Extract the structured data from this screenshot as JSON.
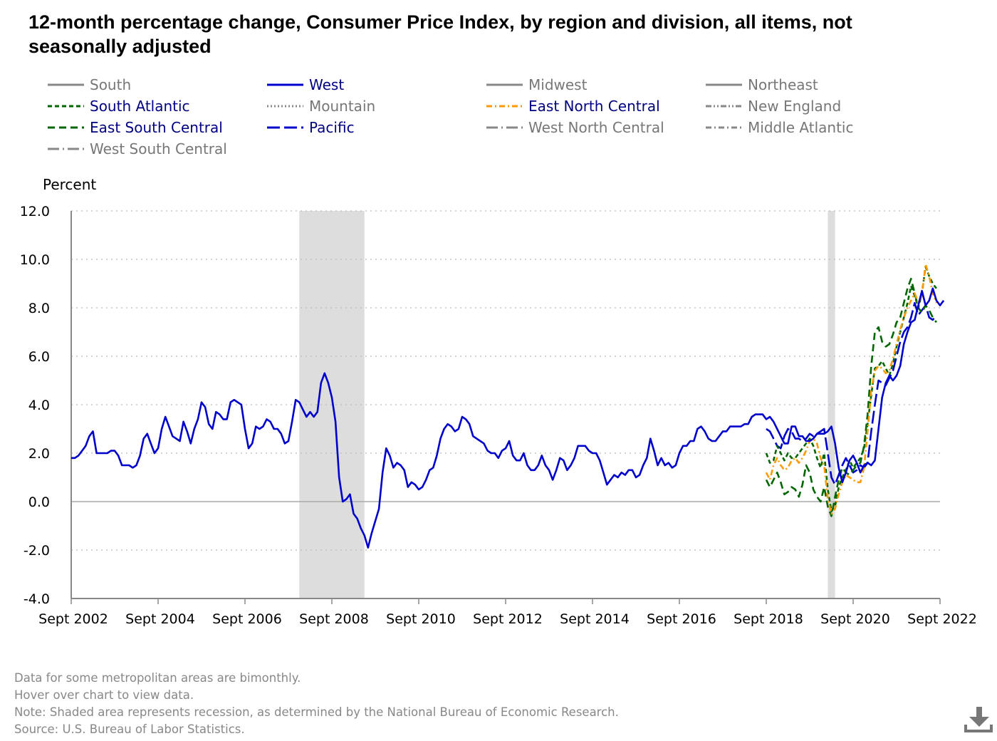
{
  "title": "12-month percentage change, Consumer Price Index, by region and division, all items, not seasonally adjusted",
  "notes": [
    "Data for some metropolitan areas are bimonthly.",
    "Hover over chart to view data.",
    "Note: Shaded area represents recession, as determined by the National Bureau of Economic Research.",
    "Source: U.S. Bureau of Labor Statistics."
  ],
  "icons": {
    "download": "download-icon"
  },
  "colors": {
    "blue": "#0000cc",
    "green": "#006600",
    "orange": "#ff9900",
    "gray": "#999999",
    "recession": "#dddddd"
  },
  "legend": [
    {
      "name": "South",
      "color": "#888888",
      "dash": "solid",
      "label_color": "#777777"
    },
    {
      "name": "West",
      "color": "#0000cc",
      "dash": "solid",
      "label_color": "#000080"
    },
    {
      "name": "Midwest",
      "color": "#888888",
      "dash": "solid",
      "label_color": "#777777"
    },
    {
      "name": "Northeast",
      "color": "#888888",
      "dash": "solid",
      "label_color": "#777777"
    },
    {
      "name": "South Atlantic",
      "color": "#006600",
      "dash": "short-dash",
      "label_color": "#000080"
    },
    {
      "name": "Mountain",
      "color": "#888888",
      "dash": "dot",
      "label_color": "#777777"
    },
    {
      "name": "East North Central",
      "color": "#ff9900",
      "dash": "dash-dot",
      "label_color": "#000080"
    },
    {
      "name": "New England",
      "color": "#888888",
      "dash": "dash-dot-dot",
      "label_color": "#777777"
    },
    {
      "name": "East South Central",
      "color": "#006600",
      "dash": "dash",
      "label_color": "#000080"
    },
    {
      "name": "Pacific",
      "color": "#0000cc",
      "dash": "long-dash",
      "label_color": "#000080"
    },
    {
      "name": "West North Central",
      "color": "#888888",
      "dash": "long-dash-dot",
      "label_color": "#777777"
    },
    {
      "name": "Middle Atlantic",
      "color": "#888888",
      "dash": "dash-dot",
      "label_color": "#777777"
    },
    {
      "name": "West South Central",
      "color": "#888888",
      "dash": "long-dash-dot",
      "label_color": "#777777"
    }
  ],
  "chart_data": {
    "type": "line",
    "title": "12-month percentage change, Consumer Price Index, by region and division, all items, not seasonally adjusted",
    "ylabel": "Percent",
    "xlabel": "",
    "ylim": [
      -4.0,
      12.0
    ],
    "yticks": [
      "12.0",
      "10.0",
      "8.0",
      "6.0",
      "4.0",
      "2.0",
      "0.0",
      "-2.0",
      "-4.0"
    ],
    "xlim": [
      "2002-09",
      "2022-09"
    ],
    "xticks": [
      "Sept 2002",
      "Sept 2004",
      "Sept 2006",
      "Sept 2008",
      "Sept 2010",
      "Sept 2012",
      "Sept 2014",
      "Sept 2016",
      "Sept 2018",
      "Sept 2020",
      "Sept 2022"
    ],
    "grid": "horizontal-dotted",
    "legend_position": "top",
    "recessions": [
      [
        "2007-12",
        "2009-06"
      ],
      [
        "2020-02",
        "2020-04"
      ]
    ],
    "series": [
      {
        "name": "West",
        "start": "2002-09",
        "color": "#0000cc",
        "dash": "solid",
        "values": [
          1.8,
          1.8,
          1.9,
          2.1,
          2.3,
          2.7,
          2.9,
          2.0,
          2.0,
          2.0,
          2.0,
          2.1,
          2.1,
          1.9,
          1.5,
          1.5,
          1.5,
          1.4,
          1.5,
          1.9,
          2.6,
          2.8,
          2.4,
          2.0,
          2.2,
          3.0,
          3.5,
          3.1,
          2.7,
          2.6,
          2.5,
          3.3,
          2.9,
          2.4,
          3.0,
          3.4,
          4.1,
          3.9,
          3.2,
          3.0,
          3.7,
          3.6,
          3.4,
          3.4,
          4.1,
          4.2,
          4.1,
          4.0,
          3.0,
          2.2,
          2.4,
          3.1,
          3.0,
          3.1,
          3.4,
          3.3,
          3.0,
          3.0,
          2.8,
          2.4,
          2.5,
          3.3,
          4.2,
          4.1,
          3.8,
          3.5,
          3.7,
          3.5,
          3.7,
          4.9,
          5.3,
          4.9,
          4.3,
          3.3,
          1.0,
          0.0,
          0.1,
          0.3,
          -0.5,
          -0.7,
          -1.1,
          -1.4,
          -1.9,
          -1.3,
          -0.8,
          -0.3,
          1.2,
          2.2,
          1.9,
          1.4,
          1.6,
          1.5,
          1.3,
          0.6,
          0.8,
          0.7,
          0.5,
          0.6,
          0.9,
          1.3,
          1.4,
          1.9,
          2.6,
          3.0,
          3.2,
          3.1,
          2.9,
          3.0,
          3.5,
          3.4,
          3.2,
          2.7,
          2.6,
          2.5,
          2.4,
          2.1,
          2.0,
          2.0,
          1.8,
          2.1,
          2.2,
          2.5,
          1.9,
          1.7,
          1.7,
          2.0,
          1.5,
          1.3,
          1.3,
          1.5,
          1.9,
          1.5,
          1.3,
          0.9,
          1.3,
          1.8,
          1.7,
          1.3,
          1.5,
          1.8,
          2.3,
          2.3,
          2.3,
          2.1,
          2.0,
          2.0,
          1.7,
          1.2,
          0.7,
          0.9,
          1.1,
          1.0,
          1.2,
          1.1,
          1.3,
          1.3,
          1.0,
          1.1,
          1.5,
          1.8,
          2.6,
          2.1,
          1.5,
          1.8,
          1.5,
          1.6,
          1.4,
          1.5,
          2.0,
          2.3,
          2.3,
          2.5,
          2.5,
          3.0,
          3.1,
          2.9,
          2.6,
          2.5,
          2.5,
          2.7,
          2.9,
          2.9,
          3.1,
          3.1,
          3.1,
          3.1,
          3.2,
          3.2,
          3.5,
          3.6,
          3.6,
          3.6,
          3.4,
          3.5,
          3.3,
          3.0,
          2.7,
          2.4,
          2.4,
          3.1,
          3.1,
          2.7,
          2.7,
          2.5,
          2.5,
          2.6,
          2.8,
          2.8,
          2.8,
          2.9,
          3.1,
          2.4,
          1.4,
          0.8,
          1.2,
          1.7,
          1.9,
          1.6,
          1.2,
          1.5,
          1.6,
          1.5,
          1.7,
          3.0,
          4.3,
          4.9,
          5.2,
          5.0,
          5.2,
          5.6,
          6.5,
          7.0,
          7.4,
          7.5,
          8.1,
          8.7,
          8.1,
          8.3,
          8.8,
          8.3,
          8.1,
          8.3
        ]
      },
      {
        "name": "Pacific",
        "start": "2018-09",
        "color": "#0000cc",
        "dash": "long-dash",
        "values": [
          3.0,
          2.9,
          2.6,
          2.3,
          2.2,
          2.7,
          3.0,
          2.9,
          2.6,
          2.6,
          2.5,
          2.6,
          2.8,
          2.7,
          2.8,
          2.9,
          3.0,
          2.0,
          1.0,
          0.7,
          1.1,
          1.5,
          1.8,
          1.5,
          1.2,
          1.3,
          1.5,
          1.4,
          1.6,
          2.9,
          4.0,
          5.0,
          4.9,
          4.8,
          5.1,
          5.4,
          6.0,
          6.6,
          7.0,
          7.2,
          7.6,
          8.2,
          7.7,
          7.9,
          8.1,
          7.6,
          7.5,
          7.7
        ]
      },
      {
        "name": "South Atlantic",
        "start": "2018-09",
        "color": "#006600",
        "dash": "short-dash",
        "values": [
          2.0,
          1.6,
          1.7,
          2.3,
          2.0,
          1.7,
          2.0,
          1.8,
          1.8,
          2.0,
          2.2,
          2.4,
          2.6,
          2.3,
          1.8,
          1.4,
          2.0,
          0.5,
          -0.4,
          -0.2,
          0.6,
          1.0,
          1.3,
          1.7,
          1.4,
          1.6,
          1.8,
          2.2,
          3.2,
          4.4,
          5.5,
          5.6,
          5.8,
          5.5,
          5.2,
          5.7,
          6.4,
          7.0,
          7.6,
          8.2,
          8.9,
          8.5,
          8.0,
          8.6,
          9.7,
          9.3,
          9.0,
          8.8
        ]
      },
      {
        "name": "East South Central",
        "start": "2018-09",
        "color": "#006600",
        "dash": "dash",
        "values": [
          0.9,
          0.6,
          0.9,
          1.2,
          0.8,
          0.3,
          0.4,
          0.6,
          0.5,
          0.2,
          0.7,
          1.5,
          1.2,
          0.5,
          0.2,
          0.0,
          0.6,
          -0.2,
          -0.6,
          0.2,
          0.9,
          1.4,
          1.2,
          1.1,
          1.3,
          1.5,
          1.6,
          2.3,
          3.6,
          5.6,
          7.0,
          7.2,
          6.6,
          6.4,
          6.5,
          6.9,
          7.4,
          7.6,
          8.2,
          8.8,
          9.2,
          8.6,
          8.0,
          7.8,
          8.1,
          7.9,
          7.6,
          7.4
        ]
      },
      {
        "name": "East North Central",
        "start": "2018-09",
        "color": "#ff9900",
        "dash": "dash-dot",
        "values": [
          1.2,
          0.9,
          1.5,
          1.8,
          1.5,
          1.3,
          1.4,
          1.7,
          1.8,
          1.6,
          1.8,
          2.1,
          2.5,
          2.6,
          2.4,
          1.8,
          1.5,
          0.1,
          -0.5,
          -0.3,
          0.3,
          0.8,
          1.1,
          1.0,
          0.9,
          0.8,
          0.8,
          1.4,
          2.9,
          4.6,
          5.4,
          5.6,
          5.5,
          5.3,
          5.4,
          5.9,
          6.5,
          7.1,
          7.6,
          8.0,
          8.3,
          8.6,
          8.2,
          8.5,
          9.8,
          9.3,
          8.6,
          8.2
        ]
      }
    ]
  }
}
